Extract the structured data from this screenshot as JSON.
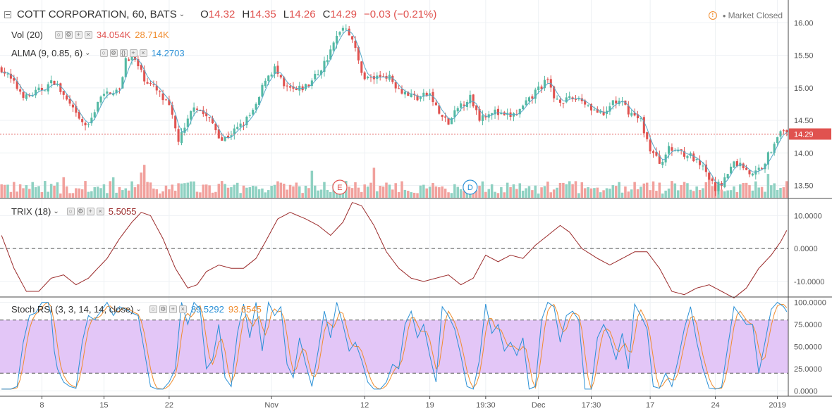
{
  "header": {
    "symbol": "COTT CORPORATION, 60, BATS",
    "open_label": "O",
    "open": "14.32",
    "high_label": "H",
    "high": "14.35",
    "low_label": "L",
    "low": "14.26",
    "close_label": "C",
    "close": "14.29",
    "change": "−0.03 (−0.21%)",
    "market_status": "Market Closed",
    "market_status_bullet": "●",
    "warning_icon": "!"
  },
  "indicators": {
    "vol": {
      "label": "Vol (20)",
      "value1": "34.054K",
      "value2": "28.714K"
    },
    "alma": {
      "label": "ALMA (9, 0.85, 6)",
      "value": "14.2703"
    },
    "trix": {
      "label": "TRIX (18)",
      "value": "5.5055"
    },
    "stoch": {
      "label": "Stoch RSI (3, 3, 14, 14, close)",
      "k": "89.5292",
      "d": "93.6545"
    }
  },
  "colors": {
    "up": "#53b9a3",
    "down": "#e0524f",
    "vol_up": "#8fd1c2",
    "vol_down": "#f1a19d",
    "alma": "#56a8c7",
    "trix": "#9b2b2b",
    "stoch_k": "#2a90d6",
    "stoch_d": "#f08c2e",
    "band": "#e3c6f7",
    "price_line": "#e0524f",
    "grid": "#eef1f4",
    "axis_text": "#555555",
    "header_up": "#e0524f"
  },
  "markers": [
    {
      "label": "E",
      "color": "#e0524f",
      "x_index": 109
    },
    {
      "label": "D",
      "color": "#2a90d6",
      "x_index": 151
    }
  ],
  "chart_data": {
    "type": "candlestick",
    "panes": [
      {
        "name": "price",
        "ylim": [
          13.3,
          16.35
        ],
        "ticks": [
          "16.00",
          "15.50",
          "15.00",
          "14.50",
          "14.00",
          "13.50"
        ],
        "tick_values": [
          16.0,
          15.5,
          15.0,
          14.5,
          14.0,
          13.5
        ],
        "last_price": 14.29,
        "last_price_label": "14.29"
      },
      {
        "name": "trix",
        "ylim": [
          -14.5,
          15
        ],
        "ticks": [
          "10.0000",
          "0.0000",
          "-10.0000"
        ],
        "tick_values": [
          10,
          0,
          -10
        ]
      },
      {
        "name": "stoch",
        "ylim": [
          -6,
          106
        ],
        "ticks": [
          "100.0000",
          "75.0000",
          "50.0000",
          "25.0000",
          "0.0000"
        ],
        "tick_values": [
          100,
          75,
          50,
          25,
          0
        ],
        "band": [
          20,
          80
        ]
      }
    ],
    "x_labels": [
      {
        "label": "8",
        "index": 13
      },
      {
        "label": "15",
        "index": 33
      },
      {
        "label": "22",
        "index": 54
      },
      {
        "label": "Nov",
        "index": 87
      },
      {
        "label": "12",
        "index": 117
      },
      {
        "label": "19",
        "index": 138
      },
      {
        "label": "19:30",
        "index": 156
      },
      {
        "label": "Dec",
        "index": 173
      },
      {
        "label": "17:30",
        "index": 190
      },
      {
        "label": "17",
        "index": 209
      },
      {
        "label": "24",
        "index": 230
      },
      {
        "label": "2019",
        "index": 250
      }
    ],
    "price_anchors": [
      [
        0,
        15.3
      ],
      [
        5,
        15.0
      ],
      [
        8,
        14.85
      ],
      [
        12,
        14.95
      ],
      [
        17,
        15.1
      ],
      [
        21,
        14.8
      ],
      [
        25,
        14.5
      ],
      [
        28,
        14.4
      ],
      [
        31,
        14.8
      ],
      [
        35,
        14.95
      ],
      [
        38,
        14.95
      ],
      [
        40,
        15.45
      ],
      [
        42,
        15.5
      ],
      [
        46,
        15.15
      ],
      [
        50,
        14.95
      ],
      [
        54,
        14.7
      ],
      [
        57,
        14.2
      ],
      [
        59,
        14.35
      ],
      [
        62,
        14.75
      ],
      [
        65,
        14.6
      ],
      [
        68,
        14.45
      ],
      [
        71,
        14.2
      ],
      [
        74,
        14.3
      ],
      [
        78,
        14.45
      ],
      [
        82,
        14.7
      ],
      [
        85,
        15.15
      ],
      [
        88,
        15.3
      ],
      [
        91,
        15.0
      ],
      [
        95,
        14.95
      ],
      [
        99,
        15.05
      ],
      [
        103,
        15.3
      ],
      [
        106,
        15.55
      ],
      [
        109,
        15.9
      ],
      [
        111,
        15.95
      ],
      [
        113,
        15.75
      ],
      [
        115,
        15.4
      ],
      [
        117,
        15.15
      ],
      [
        120,
        15.15
      ],
      [
        124,
        15.2
      ],
      [
        128,
        15.0
      ],
      [
        131,
        14.9
      ],
      [
        134,
        14.85
      ],
      [
        138,
        14.9
      ],
      [
        141,
        14.6
      ],
      [
        144,
        14.45
      ],
      [
        148,
        14.75
      ],
      [
        151,
        14.85
      ],
      [
        154,
        14.55
      ],
      [
        158,
        14.65
      ],
      [
        162,
        14.55
      ],
      [
        166,
        14.6
      ],
      [
        170,
        14.8
      ],
      [
        173,
        15.0
      ],
      [
        176,
        15.1
      ],
      [
        178,
        14.85
      ],
      [
        182,
        14.8
      ],
      [
        186,
        14.85
      ],
      [
        190,
        14.7
      ],
      [
        194,
        14.55
      ],
      [
        197,
        14.8
      ],
      [
        200,
        14.75
      ],
      [
        203,
        14.6
      ],
      [
        206,
        14.5
      ],
      [
        209,
        14.05
      ],
      [
        212,
        13.85
      ],
      [
        215,
        14.05
      ],
      [
        218,
        14.05
      ],
      [
        222,
        13.95
      ],
      [
        226,
        13.75
      ],
      [
        230,
        13.45
      ],
      [
        233,
        13.6
      ],
      [
        236,
        13.85
      ],
      [
        239,
        13.8
      ],
      [
        242,
        13.65
      ],
      [
        245,
        13.8
      ],
      [
        248,
        14.05
      ],
      [
        250,
        14.3
      ],
      [
        253,
        14.29
      ]
    ],
    "trix_anchors": [
      [
        0,
        4
      ],
      [
        4,
        -6
      ],
      [
        8,
        -13
      ],
      [
        12,
        -13
      ],
      [
        16,
        -9
      ],
      [
        20,
        -8
      ],
      [
        24,
        -11
      ],
      [
        28,
        -9
      ],
      [
        34,
        -3
      ],
      [
        38,
        3
      ],
      [
        42,
        8
      ],
      [
        45,
        11
      ],
      [
        48,
        10
      ],
      [
        52,
        3
      ],
      [
        56,
        -6
      ],
      [
        60,
        -12
      ],
      [
        63,
        -11
      ],
      [
        66,
        -7
      ],
      [
        70,
        -5
      ],
      [
        74,
        -6
      ],
      [
        78,
        -6
      ],
      [
        82,
        -3
      ],
      [
        85,
        2
      ],
      [
        89,
        9
      ],
      [
        93,
        11
      ],
      [
        98,
        9
      ],
      [
        102,
        7
      ],
      [
        106,
        4
      ],
      [
        110,
        8
      ],
      [
        113,
        14
      ],
      [
        116,
        13
      ],
      [
        120,
        7
      ],
      [
        124,
        -1
      ],
      [
        128,
        -6
      ],
      [
        132,
        -9
      ],
      [
        136,
        -10
      ],
      [
        140,
        -9
      ],
      [
        144,
        -8
      ],
      [
        148,
        -11
      ],
      [
        152,
        -9
      ],
      [
        156,
        -2
      ],
      [
        160,
        -4
      ],
      [
        164,
        -2
      ],
      [
        168,
        -3
      ],
      [
        172,
        1
      ],
      [
        176,
        4
      ],
      [
        180,
        7
      ],
      [
        183,
        5
      ],
      [
        187,
        0
      ],
      [
        192,
        -3
      ],
      [
        196,
        -5
      ],
      [
        200,
        -3
      ],
      [
        204,
        -1
      ],
      [
        208,
        -1
      ],
      [
        212,
        -6
      ],
      [
        216,
        -13
      ],
      [
        220,
        -14
      ],
      [
        224,
        -12
      ],
      [
        228,
        -11
      ],
      [
        232,
        -13
      ],
      [
        236,
        -15
      ],
      [
        240,
        -12
      ],
      [
        244,
        -6
      ],
      [
        248,
        -2
      ],
      [
        251,
        2
      ],
      [
        253,
        5.5
      ]
    ],
    "stoch_k_anchors": [
      [
        0,
        2
      ],
      [
        3,
        2
      ],
      [
        5,
        5
      ],
      [
        7,
        55
      ],
      [
        9,
        85
      ],
      [
        11,
        88
      ],
      [
        13,
        100
      ],
      [
        15,
        100
      ],
      [
        16,
        85
      ],
      [
        17,
        45
      ],
      [
        18,
        25
      ],
      [
        20,
        10
      ],
      [
        22,
        5
      ],
      [
        24,
        3
      ],
      [
        26,
        55
      ],
      [
        28,
        85
      ],
      [
        30,
        80
      ],
      [
        32,
        90
      ],
      [
        34,
        100
      ],
      [
        36,
        85
      ],
      [
        38,
        95
      ],
      [
        40,
        92
      ],
      [
        42,
        88
      ],
      [
        44,
        85
      ],
      [
        46,
        45
      ],
      [
        48,
        5
      ],
      [
        50,
        2
      ],
      [
        52,
        2
      ],
      [
        54,
        10
      ],
      [
        56,
        25
      ],
      [
        58,
        100
      ],
      [
        60,
        75
      ],
      [
        62,
        100
      ],
      [
        64,
        92
      ],
      [
        66,
        25
      ],
      [
        68,
        35
      ],
      [
        70,
        75
      ],
      [
        72,
        15
      ],
      [
        74,
        5
      ],
      [
        76,
        65
      ],
      [
        78,
        98
      ],
      [
        80,
        60
      ],
      [
        82,
        100
      ],
      [
        84,
        45
      ],
      [
        86,
        100
      ],
      [
        88,
        85
      ],
      [
        90,
        95
      ],
      [
        92,
        30
      ],
      [
        94,
        15
      ],
      [
        96,
        60
      ],
      [
        98,
        30
      ],
      [
        100,
        5
      ],
      [
        102,
        45
      ],
      [
        104,
        90
      ],
      [
        106,
        60
      ],
      [
        108,
        100
      ],
      [
        110,
        75
      ],
      [
        112,
        45
      ],
      [
        114,
        55
      ],
      [
        116,
        35
      ],
      [
        118,
        10
      ],
      [
        120,
        2
      ],
      [
        122,
        2
      ],
      [
        124,
        10
      ],
      [
        126,
        30
      ],
      [
        128,
        25
      ],
      [
        130,
        75
      ],
      [
        132,
        90
      ],
      [
        134,
        60
      ],
      [
        136,
        75
      ],
      [
        138,
        40
      ],
      [
        140,
        10
      ],
      [
        142,
        95
      ],
      [
        144,
        85
      ],
      [
        146,
        70
      ],
      [
        148,
        40
      ],
      [
        150,
        5
      ],
      [
        152,
        2
      ],
      [
        154,
        35
      ],
      [
        156,
        98
      ],
      [
        158,
        65
      ],
      [
        160,
        75
      ],
      [
        162,
        45
      ],
      [
        164,
        55
      ],
      [
        166,
        40
      ],
      [
        168,
        60
      ],
      [
        170,
        2
      ],
      [
        172,
        5
      ],
      [
        174,
        80
      ],
      [
        176,
        100
      ],
      [
        178,
        95
      ],
      [
        180,
        55
      ],
      [
        182,
        85
      ],
      [
        184,
        90
      ],
      [
        186,
        80
      ],
      [
        188,
        2
      ],
      [
        190,
        2
      ],
      [
        192,
        60
      ],
      [
        194,
        75
      ],
      [
        196,
        60
      ],
      [
        198,
        35
      ],
      [
        200,
        65
      ],
      [
        202,
        25
      ],
      [
        204,
        98
      ],
      [
        206,
        85
      ],
      [
        208,
        70
      ],
      [
        210,
        5
      ],
      [
        212,
        3
      ],
      [
        214,
        20
      ],
      [
        216,
        5
      ],
      [
        218,
        35
      ],
      [
        220,
        70
      ],
      [
        222,
        95
      ],
      [
        224,
        55
      ],
      [
        226,
        25
      ],
      [
        228,
        3
      ],
      [
        230,
        2
      ],
      [
        232,
        4
      ],
      [
        234,
        50
      ],
      [
        236,
        95
      ],
      [
        238,
        85
      ],
      [
        240,
        75
      ],
      [
        242,
        75
      ],
      [
        244,
        20
      ],
      [
        246,
        55
      ],
      [
        248,
        92
      ],
      [
        250,
        100
      ],
      [
        252,
        95
      ],
      [
        253,
        89.5
      ]
    ],
    "x_count": 254
  }
}
